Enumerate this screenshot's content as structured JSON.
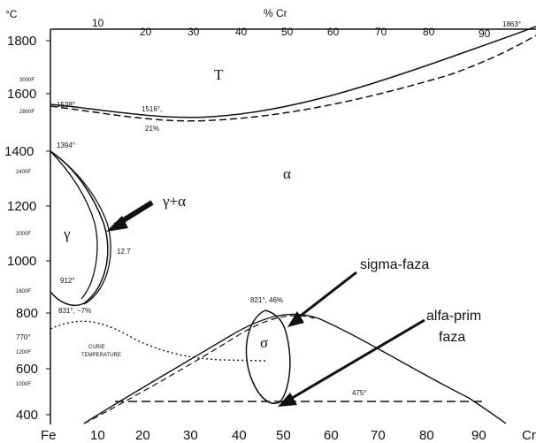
{
  "axes": {
    "y_unit": "°C",
    "x_unit": "% Cr",
    "y_ticks": [
      "1800",
      "1600",
      "1400",
      "1200",
      "1000",
      "800",
      "600",
      "400"
    ],
    "y_ticks_f": [
      "3000F",
      "2800F",
      "2400F",
      "2000F",
      "1600F",
      "1200F",
      "1000F"
    ],
    "y_ticks_770": "770°",
    "top_ticks": [
      "10",
      "20",
      "30",
      "40",
      "50",
      "60",
      "70",
      "80",
      "90"
    ],
    "bottom_ticks": [
      "10",
      "20",
      "30",
      "40",
      "50",
      "60",
      "70",
      "80",
      "90"
    ],
    "bottom_left": "Fe",
    "bottom_right": "Cr"
  },
  "phases": {
    "liquid": "T",
    "alpha": "α",
    "gamma": "γ",
    "gamma_alpha": "γ+α",
    "sigma": "σ"
  },
  "labels": {
    "melt_fe": "1538°",
    "melt_min_temp": "1516°,",
    "melt_min_pct": "21%",
    "melt_cr": "1863°",
    "gamma_top": "1394°",
    "gamma_bottom": "912°",
    "gamma_limit": "12.7",
    "curie_point": "831°, ~7%",
    "curie_line_1": "CURIE",
    "curie_line_2": "TEMPERATURE",
    "sigma_peak": "821°, 46%",
    "alpha_prime_temp": "475°"
  },
  "annotations": {
    "sigma_phase": "sigma-faza",
    "alpha_prime_1": "alfa-prim",
    "alpha_prime_2": "faza"
  }
}
